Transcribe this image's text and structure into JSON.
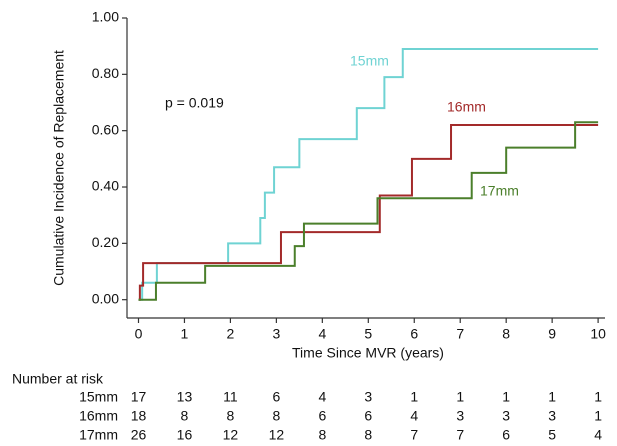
{
  "chart_data": {
    "type": "step",
    "y_label": "Cumulative Incidence of Replacement",
    "x_label": "Time Since MVR (years)",
    "annotation": "p = 0.019",
    "xlim": [
      -0.25,
      10.15
    ],
    "ylim": [
      -0.065,
      1.0
    ],
    "xticks": [
      0,
      1,
      2,
      3,
      4,
      5,
      6,
      7,
      8,
      9,
      10
    ],
    "yticks": [
      {
        "value": 0,
        "label": "0.00"
      },
      {
        "value": 0.2,
        "label": "0.20"
      },
      {
        "value": 0.4,
        "label": "0.40"
      },
      {
        "value": 0.6,
        "label": "0.60"
      },
      {
        "value": 0.8,
        "label": "0.80"
      },
      {
        "value": 1.0,
        "label": "1.00"
      }
    ],
    "series": [
      {
        "name": "15mm",
        "color": "#6fd3d3",
        "x": [
          0,
          0.08,
          0.4,
          1.95,
          2.65,
          2.75,
          2.95,
          3.5,
          4.75,
          5.35,
          5.75,
          10
        ],
        "values": [
          0,
          0.06,
          0.13,
          0.2,
          0.29,
          0.38,
          0.47,
          0.57,
          0.68,
          0.79,
          0.89,
          0.89
        ]
      },
      {
        "name": "16mm",
        "color": "#a32a2a",
        "x": [
          0,
          0.03,
          0.1,
          3.1,
          5.25,
          5.95,
          6.8,
          10
        ],
        "values": [
          0,
          0.05,
          0.13,
          0.24,
          0.37,
          0.5,
          0.62,
          0.62
        ]
      },
      {
        "name": "17mm",
        "color": "#4b7f2b",
        "x": [
          0,
          0.38,
          1.45,
          3.4,
          3.6,
          5.2,
          7.25,
          8.0,
          9.5,
          10
        ],
        "values": [
          0,
          0.06,
          0.12,
          0.19,
          0.27,
          0.36,
          0.45,
          0.54,
          0.63,
          0.63
        ]
      }
    ],
    "risk_table": {
      "title": "Number at risk",
      "rows": [
        {
          "name": "15mm",
          "values": [
            17,
            13,
            11,
            6,
            4,
            3,
            1,
            1,
            1,
            1,
            1
          ]
        },
        {
          "name": "16mm",
          "values": [
            18,
            8,
            8,
            8,
            6,
            6,
            4,
            3,
            3,
            3,
            1
          ]
        },
        {
          "name": "17mm",
          "values": [
            26,
            16,
            12,
            12,
            8,
            8,
            7,
            7,
            6,
            5,
            4
          ]
        }
      ]
    }
  }
}
